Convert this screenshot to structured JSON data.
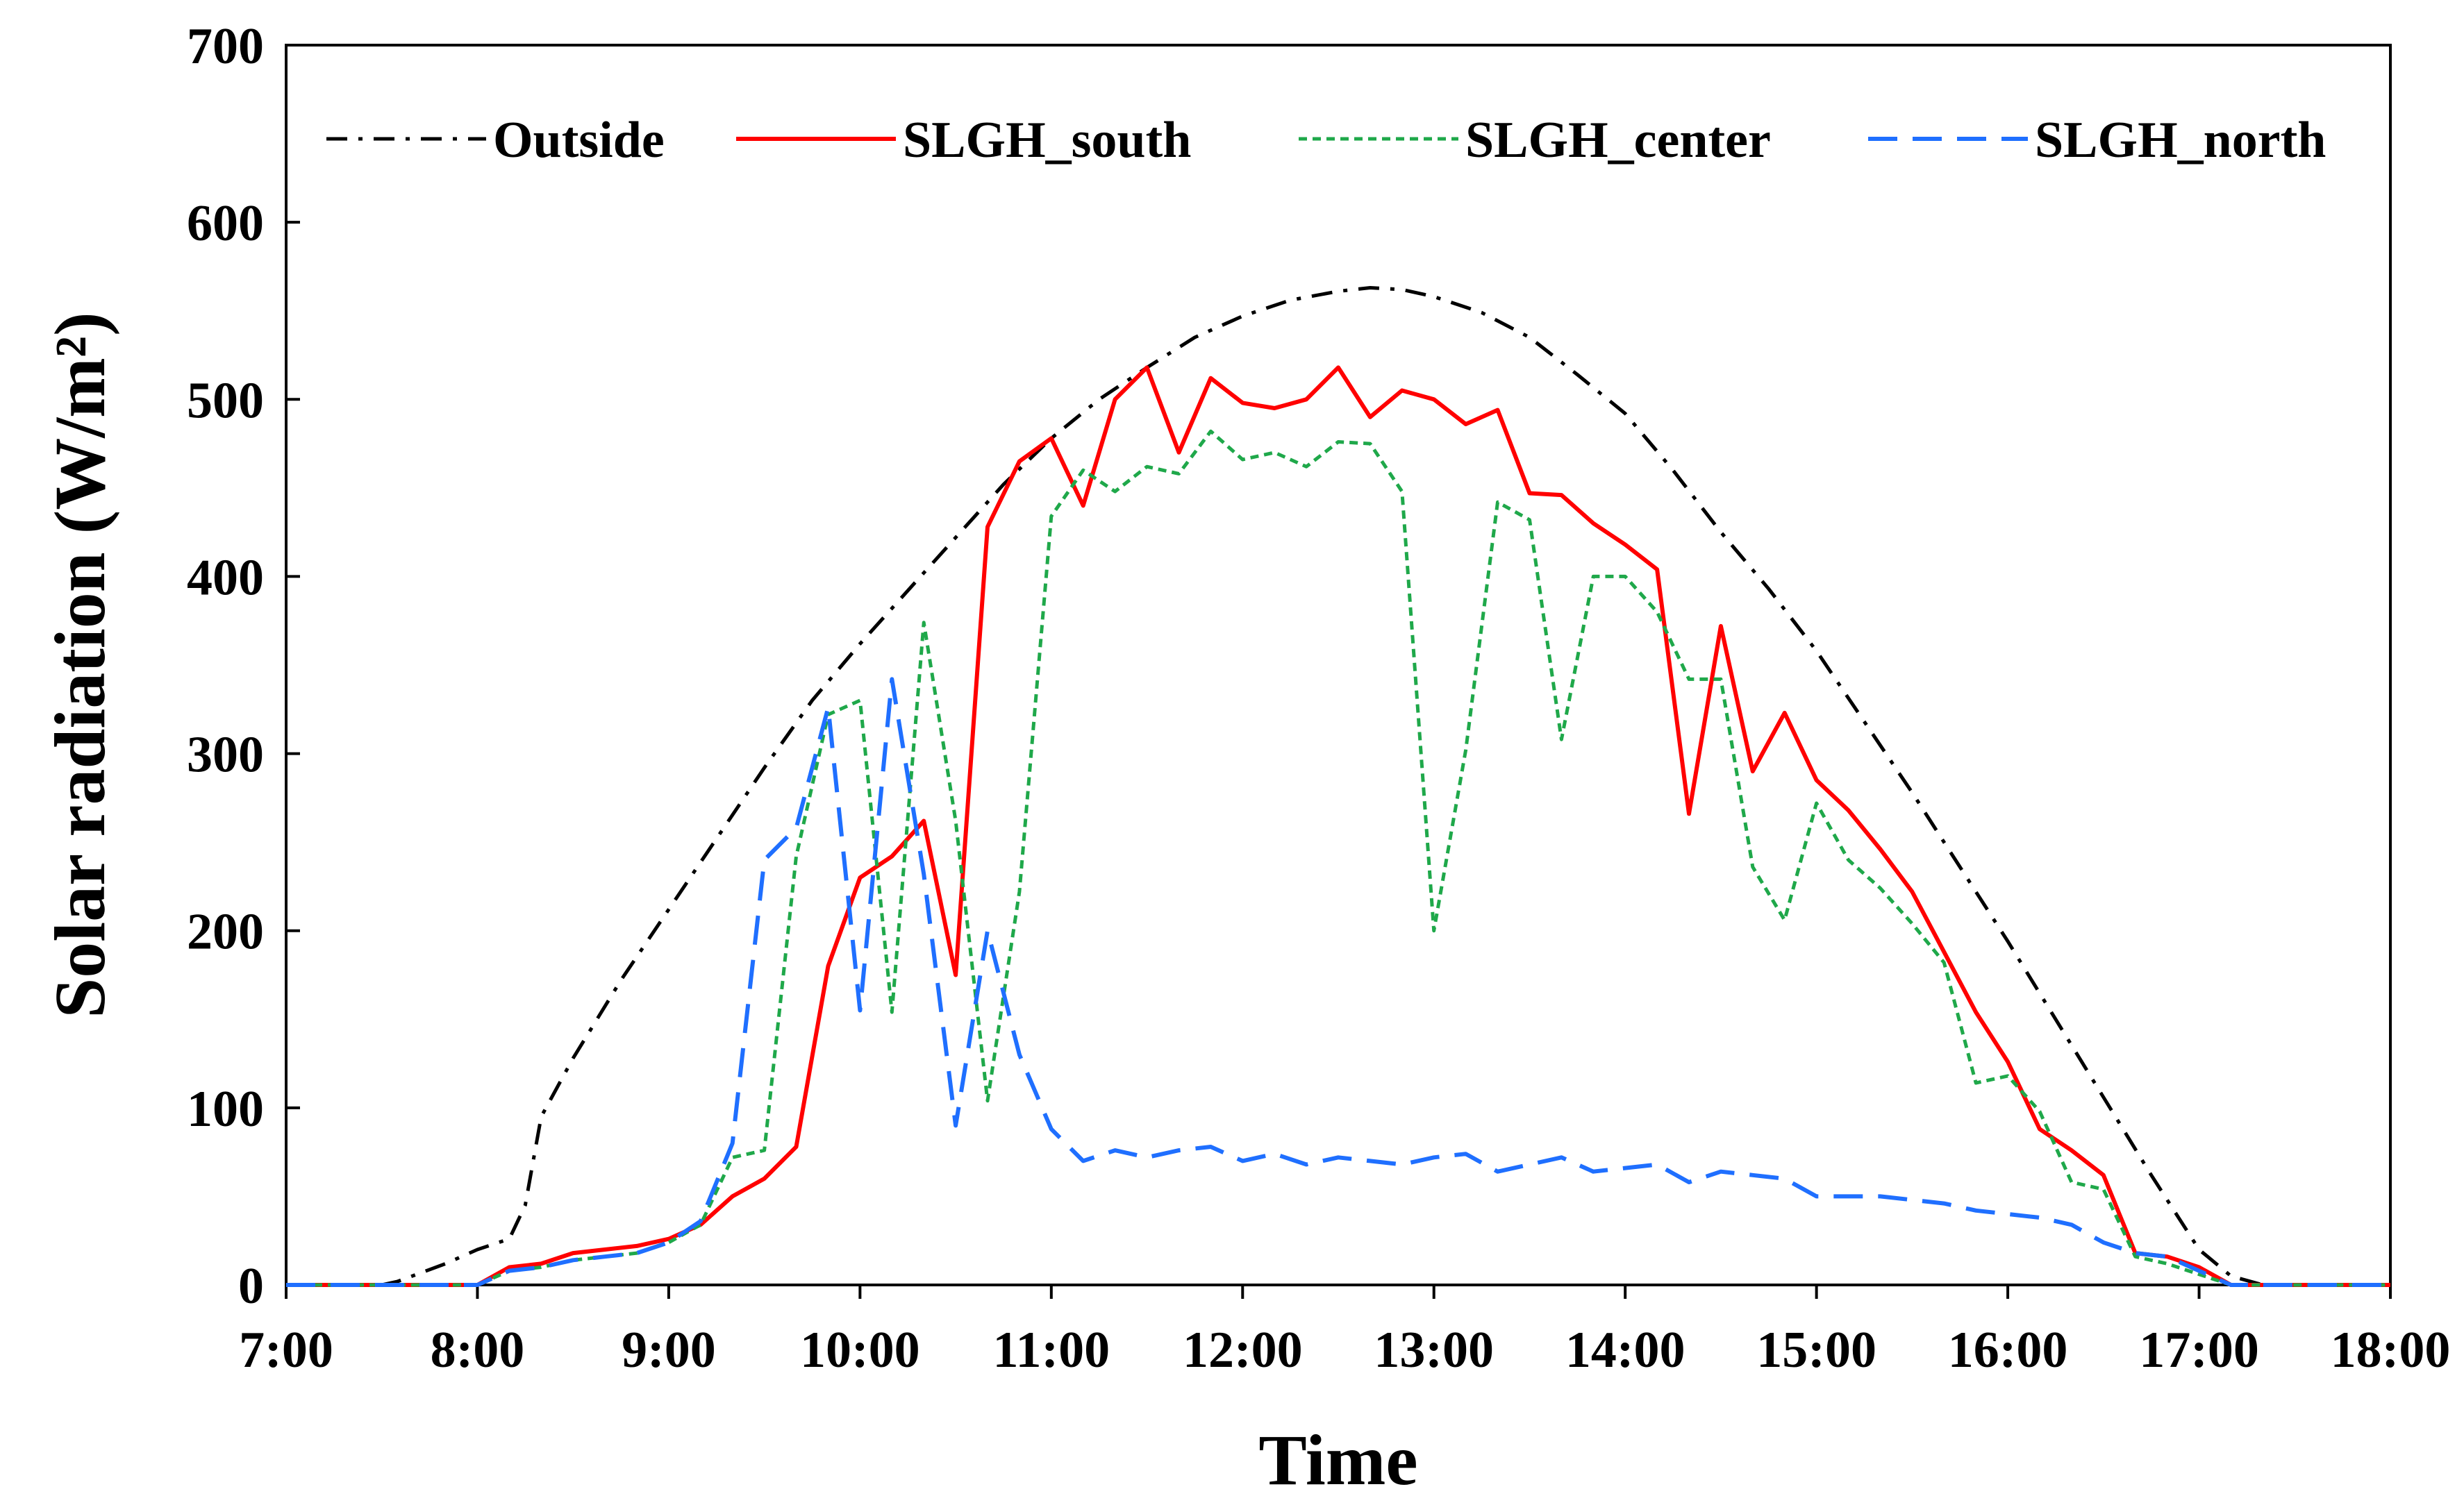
{
  "chart_data": {
    "type": "line",
    "title": "",
    "xlabel": "Time",
    "ylabel": "Solar radiation (W/m²)",
    "xlim": [
      "7:00",
      "18:00"
    ],
    "ylim": [
      0,
      700
    ],
    "x_ticks": [
      "7:00",
      "8:00",
      "9:00",
      "10:00",
      "11:00",
      "12:00",
      "13:00",
      "14:00",
      "15:00",
      "16:00",
      "17:00",
      "18:00"
    ],
    "y_ticks": [
      0,
      100,
      200,
      300,
      400,
      500,
      600,
      700
    ],
    "grid": false,
    "legend_position": "top",
    "series": [
      {
        "name": "Outside",
        "color": "#000000",
        "style": "dash-dot",
        "points": [
          [
            "7:00",
            0
          ],
          [
            "7:30",
            0
          ],
          [
            "7:35",
            2
          ],
          [
            "7:50",
            12
          ],
          [
            "8:00",
            20
          ],
          [
            "8:10",
            26
          ],
          [
            "8:15",
            45
          ],
          [
            "8:20",
            95
          ],
          [
            "8:30",
            128
          ],
          [
            "8:45",
            172
          ],
          [
            "9:00",
            212
          ],
          [
            "9:15",
            252
          ],
          [
            "9:30",
            292
          ],
          [
            "9:45",
            330
          ],
          [
            "10:00",
            362
          ],
          [
            "10:15",
            392
          ],
          [
            "10:30",
            422
          ],
          [
            "10:45",
            452
          ],
          [
            "11:00",
            478
          ],
          [
            "11:15",
            500
          ],
          [
            "11:30",
            518
          ],
          [
            "11:45",
            535
          ],
          [
            "12:00",
            547
          ],
          [
            "12:15",
            556
          ],
          [
            "12:30",
            561
          ],
          [
            "12:40",
            563
          ],
          [
            "12:50",
            562
          ],
          [
            "13:00",
            558
          ],
          [
            "13:15",
            549
          ],
          [
            "13:30",
            535
          ],
          [
            "13:45",
            514
          ],
          [
            "14:00",
            492
          ],
          [
            "14:15",
            460
          ],
          [
            "14:30",
            425
          ],
          [
            "14:45",
            393
          ],
          [
            "15:00",
            358
          ],
          [
            "15:15",
            318
          ],
          [
            "15:30",
            278
          ],
          [
            "15:45",
            236
          ],
          [
            "16:00",
            194
          ],
          [
            "16:15",
            150
          ],
          [
            "16:30",
            106
          ],
          [
            "16:45",
            62
          ],
          [
            "17:00",
            20
          ],
          [
            "17:10",
            5
          ],
          [
            "17:20",
            0
          ],
          [
            "18:00",
            0
          ]
        ]
      },
      {
        "name": "SLGH_south",
        "color": "#ff0000",
        "style": "solid",
        "points": [
          [
            "7:00",
            0
          ],
          [
            "8:00",
            0
          ],
          [
            "8:10",
            10
          ],
          [
            "8:20",
            12
          ],
          [
            "8:30",
            18
          ],
          [
            "8:40",
            20
          ],
          [
            "8:50",
            22
          ],
          [
            "9:00",
            26
          ],
          [
            "9:10",
            34
          ],
          [
            "9:20",
            50
          ],
          [
            "9:30",
            60
          ],
          [
            "9:40",
            78
          ],
          [
            "9:50",
            180
          ],
          [
            "10:00",
            230
          ],
          [
            "10:10",
            242
          ],
          [
            "10:20",
            262
          ],
          [
            "10:30",
            175
          ],
          [
            "10:40",
            428
          ],
          [
            "10:50",
            465
          ],
          [
            "11:00",
            478
          ],
          [
            "11:10",
            440
          ],
          [
            "11:20",
            500
          ],
          [
            "11:30",
            518
          ],
          [
            "11:40",
            470
          ],
          [
            "11:50",
            512
          ],
          [
            "12:00",
            498
          ],
          [
            "12:10",
            495
          ],
          [
            "12:20",
            500
          ],
          [
            "12:30",
            518
          ],
          [
            "12:40",
            490
          ],
          [
            "12:50",
            505
          ],
          [
            "13:00",
            500
          ],
          [
            "13:10",
            486
          ],
          [
            "13:20",
            494
          ],
          [
            "13:30",
            447
          ],
          [
            "13:40",
            446
          ],
          [
            "13:50",
            430
          ],
          [
            "14:00",
            418
          ],
          [
            "14:10",
            404
          ],
          [
            "14:20",
            266
          ],
          [
            "14:30",
            372
          ],
          [
            "14:40",
            290
          ],
          [
            "14:50",
            323
          ],
          [
            "15:00",
            285
          ],
          [
            "15:10",
            268
          ],
          [
            "15:20",
            246
          ],
          [
            "15:30",
            222
          ],
          [
            "15:40",
            188
          ],
          [
            "15:50",
            154
          ],
          [
            "16:00",
            126
          ],
          [
            "16:10",
            88
          ],
          [
            "16:20",
            76
          ],
          [
            "16:30",
            62
          ],
          [
            "16:40",
            18
          ],
          [
            "16:50",
            16
          ],
          [
            "17:00",
            10
          ],
          [
            "17:10",
            0
          ],
          [
            "18:00",
            0
          ]
        ]
      },
      {
        "name": "SLGH_center",
        "color": "#1fa84a",
        "style": "dotted",
        "points": [
          [
            "7:00",
            0
          ],
          [
            "8:00",
            0
          ],
          [
            "8:10",
            8
          ],
          [
            "8:20",
            10
          ],
          [
            "8:30",
            14
          ],
          [
            "8:40",
            16
          ],
          [
            "8:50",
            18
          ],
          [
            "9:00",
            24
          ],
          [
            "9:10",
            34
          ],
          [
            "9:20",
            72
          ],
          [
            "9:30",
            76
          ],
          [
            "9:40",
            242
          ],
          [
            "9:50",
            322
          ],
          [
            "10:00",
            330
          ],
          [
            "10:10",
            154
          ],
          [
            "10:20",
            374
          ],
          [
            "10:30",
            262
          ],
          [
            "10:40",
            104
          ],
          [
            "10:50",
            222
          ],
          [
            "11:00",
            434
          ],
          [
            "11:10",
            460
          ],
          [
            "11:20",
            448
          ],
          [
            "11:30",
            462
          ],
          [
            "11:40",
            458
          ],
          [
            "11:50",
            482
          ],
          [
            "12:00",
            466
          ],
          [
            "12:10",
            470
          ],
          [
            "12:20",
            462
          ],
          [
            "12:30",
            476
          ],
          [
            "12:40",
            475
          ],
          [
            "12:50",
            448
          ],
          [
            "13:00",
            200
          ],
          [
            "13:10",
            302
          ],
          [
            "13:20",
            442
          ],
          [
            "13:30",
            432
          ],
          [
            "13:40",
            308
          ],
          [
            "13:50",
            400
          ],
          [
            "14:00",
            400
          ],
          [
            "14:10",
            380
          ],
          [
            "14:20",
            342
          ],
          [
            "14:30",
            342
          ],
          [
            "14:40",
            236
          ],
          [
            "14:50",
            206
          ],
          [
            "15:00",
            272
          ],
          [
            "15:10",
            240
          ],
          [
            "15:20",
            224
          ],
          [
            "15:30",
            204
          ],
          [
            "15:40",
            182
          ],
          [
            "15:50",
            114
          ],
          [
            "16:00",
            118
          ],
          [
            "16:10",
            98
          ],
          [
            "16:20",
            58
          ],
          [
            "16:30",
            54
          ],
          [
            "16:40",
            16
          ],
          [
            "16:50",
            12
          ],
          [
            "17:00",
            6
          ],
          [
            "17:10",
            0
          ],
          [
            "18:00",
            0
          ]
        ]
      },
      {
        "name": "SLGH_north",
        "color": "#1f6fff",
        "style": "dashed",
        "points": [
          [
            "7:00",
            0
          ],
          [
            "8:00",
            0
          ],
          [
            "8:10",
            8
          ],
          [
            "8:20",
            10
          ],
          [
            "8:30",
            14
          ],
          [
            "8:40",
            16
          ],
          [
            "8:50",
            18
          ],
          [
            "9:00",
            24
          ],
          [
            "9:10",
            36
          ],
          [
            "9:20",
            80
          ],
          [
            "9:30",
            240
          ],
          [
            "9:40",
            258
          ],
          [
            "9:50",
            326
          ],
          [
            "10:00",
            155
          ],
          [
            "10:10",
            342
          ],
          [
            "10:20",
            232
          ],
          [
            "10:30",
            90
          ],
          [
            "10:40",
            200
          ],
          [
            "10:50",
            130
          ],
          [
            "11:00",
            88
          ],
          [
            "11:10",
            70
          ],
          [
            "11:20",
            76
          ],
          [
            "11:30",
            72
          ],
          [
            "11:40",
            76
          ],
          [
            "11:50",
            78
          ],
          [
            "12:00",
            70
          ],
          [
            "12:10",
            74
          ],
          [
            "12:20",
            68
          ],
          [
            "12:30",
            72
          ],
          [
            "12:40",
            70
          ],
          [
            "12:50",
            68
          ],
          [
            "13:00",
            72
          ],
          [
            "13:10",
            74
          ],
          [
            "13:20",
            64
          ],
          [
            "13:30",
            68
          ],
          [
            "13:40",
            72
          ],
          [
            "13:50",
            64
          ],
          [
            "14:00",
            66
          ],
          [
            "14:10",
            68
          ],
          [
            "14:20",
            58
          ],
          [
            "14:30",
            64
          ],
          [
            "14:40",
            62
          ],
          [
            "14:50",
            60
          ],
          [
            "15:00",
            50
          ],
          [
            "15:10",
            50
          ],
          [
            "15:20",
            50
          ],
          [
            "15:30",
            48
          ],
          [
            "15:40",
            46
          ],
          [
            "15:50",
            42
          ],
          [
            "16:00",
            40
          ],
          [
            "16:10",
            38
          ],
          [
            "16:20",
            34
          ],
          [
            "16:30",
            24
          ],
          [
            "16:40",
            18
          ],
          [
            "16:50",
            16
          ],
          [
            "17:00",
            8
          ],
          [
            "17:10",
            0
          ],
          [
            "18:00",
            0
          ]
        ]
      }
    ]
  }
}
